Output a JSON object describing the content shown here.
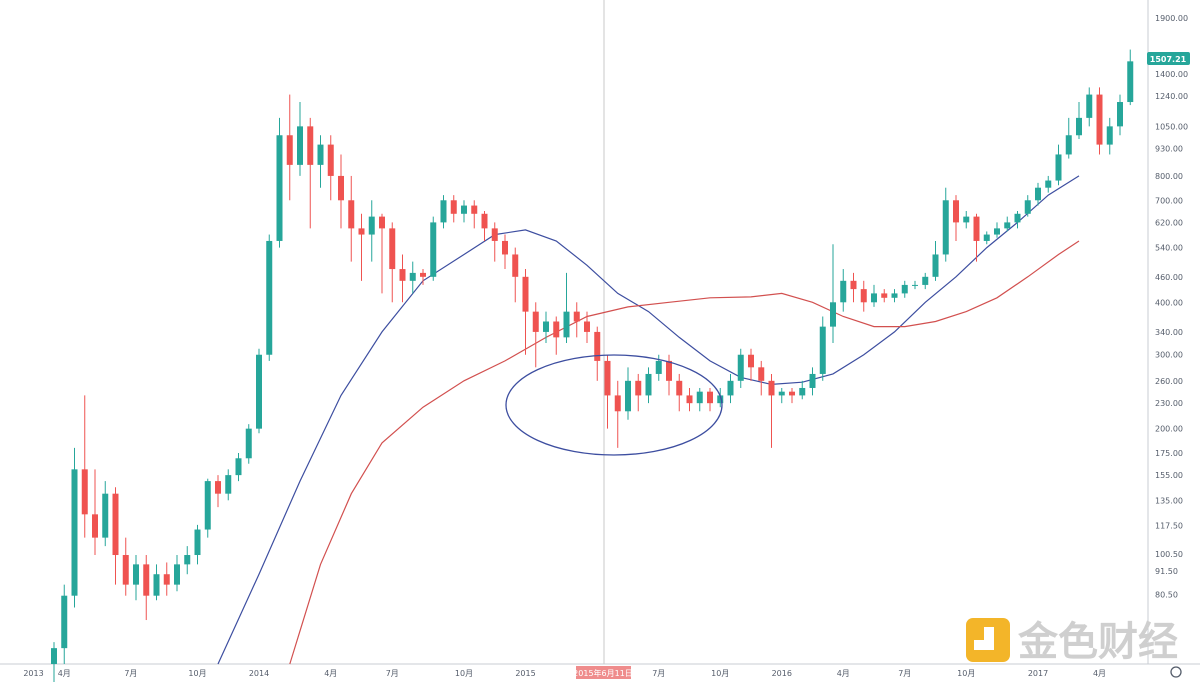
{
  "chart_data": {
    "type": "candlestick",
    "scale": "log",
    "ylim": [
      55,
      2100
    ],
    "price_axis_labels": [
      "1900.00",
      "1400.00",
      "1240.00",
      "1050.00",
      "930.00",
      "800.00",
      "700.00",
      "620.00",
      "540.00",
      "460.00",
      "400.00",
      "340.00",
      "300.00",
      "260.00",
      "230.00",
      "200.00",
      "175.00",
      "155.00",
      "135.00",
      "117.50",
      "100.50",
      "91.50",
      "80.50"
    ],
    "time_axis_labels": [
      "2013",
      "4月",
      "7月",
      "10月",
      "2014",
      "4月",
      "7月",
      "10月",
      "2015",
      "4月",
      "7月",
      "10月",
      "2016",
      "4月",
      "7月",
      "10月",
      "2017",
      "4月"
    ],
    "crosshair_date_label": "2015年6月11日",
    "last_price_label": "1507.21",
    "colors": {
      "up": "#26a69a",
      "down": "#ef5350",
      "ma_blue": "#3d4ea0",
      "ma_red": "#d2504f",
      "ellipse": "#3d4ea0",
      "crosshair": "#c9c9c9",
      "price_tag": "#26a69a",
      "cross_tag": "#ef8c8c"
    },
    "moving_averages": [
      {
        "color": "#3d4ea0",
        "points": [
          [
            18,
            55
          ],
          [
            22,
            90
          ],
          [
            26,
            150
          ],
          [
            30,
            240
          ],
          [
            34,
            340
          ],
          [
            38,
            450
          ],
          [
            42,
            520
          ],
          [
            45,
            580
          ],
          [
            48,
            595
          ],
          [
            51,
            560
          ],
          [
            54,
            490
          ],
          [
            57,
            420
          ],
          [
            60,
            380
          ],
          [
            63,
            330
          ],
          [
            66,
            290
          ],
          [
            69,
            265
          ],
          [
            72,
            255
          ],
          [
            75,
            258
          ],
          [
            78,
            270
          ],
          [
            81,
            300
          ],
          [
            84,
            340
          ],
          [
            87,
            400
          ],
          [
            90,
            460
          ],
          [
            93,
            540
          ],
          [
            96,
            620
          ],
          [
            99,
            720
          ],
          [
            102,
            800
          ]
        ]
      },
      {
        "color": "#d2504f",
        "points": [
          [
            25,
            55
          ],
          [
            28,
            95
          ],
          [
            31,
            140
          ],
          [
            34,
            185
          ],
          [
            38,
            225
          ],
          [
            42,
            260
          ],
          [
            46,
            290
          ],
          [
            50,
            330
          ],
          [
            54,
            370
          ],
          [
            58,
            390
          ],
          [
            62,
            400
          ],
          [
            66,
            410
          ],
          [
            70,
            412
          ],
          [
            73,
            420
          ],
          [
            76,
            400
          ],
          [
            79,
            370
          ],
          [
            82,
            350
          ],
          [
            85,
            350
          ],
          [
            88,
            360
          ],
          [
            91,
            380
          ],
          [
            94,
            410
          ],
          [
            97,
            460
          ],
          [
            100,
            520
          ],
          [
            102,
            560
          ]
        ]
      }
    ],
    "candles": [
      [
        2,
        55,
        60,
        43,
        62
      ],
      [
        3,
        60,
        80,
        55,
        85
      ],
      [
        4,
        80,
        160,
        75,
        180
      ],
      [
        5,
        160,
        125,
        110,
        240
      ],
      [
        6,
        125,
        110,
        100,
        160
      ],
      [
        7,
        110,
        140,
        105,
        150
      ],
      [
        8,
        140,
        100,
        85,
        145
      ],
      [
        9,
        100,
        85,
        80,
        110
      ],
      [
        10,
        85,
        95,
        78,
        100
      ],
      [
        11,
        95,
        80,
        70,
        100
      ],
      [
        12,
        80,
        90,
        78,
        95
      ],
      [
        13,
        90,
        85,
        80,
        96
      ],
      [
        14,
        85,
        95,
        82,
        100
      ],
      [
        15,
        95,
        100,
        90,
        105
      ],
      [
        16,
        100,
        115,
        95,
        118
      ],
      [
        17,
        115,
        150,
        110,
        152
      ],
      [
        18,
        150,
        140,
        130,
        155
      ],
      [
        19,
        140,
        155,
        135,
        160
      ],
      [
        20,
        155,
        170,
        150,
        175
      ],
      [
        21,
        170,
        200,
        165,
        205
      ],
      [
        22,
        200,
        300,
        195,
        310
      ],
      [
        23,
        300,
        560,
        290,
        580
      ],
      [
        24,
        560,
        1000,
        540,
        1100
      ],
      [
        25,
        1000,
        850,
        700,
        1250
      ],
      [
        26,
        850,
        1050,
        800,
        1200
      ],
      [
        27,
        1050,
        850,
        600,
        1100
      ],
      [
        28,
        850,
        950,
        750,
        1000
      ],
      [
        29,
        950,
        800,
        700,
        1000
      ],
      [
        30,
        800,
        700,
        600,
        900
      ],
      [
        31,
        700,
        600,
        500,
        800
      ],
      [
        32,
        600,
        580,
        450,
        650
      ],
      [
        33,
        580,
        640,
        500,
        700
      ],
      [
        34,
        640,
        600,
        420,
        650
      ],
      [
        35,
        600,
        480,
        400,
        620
      ],
      [
        36,
        480,
        450,
        400,
        520
      ],
      [
        37,
        450,
        470,
        420,
        500
      ],
      [
        38,
        470,
        460,
        440,
        480
      ],
      [
        39,
        460,
        620,
        450,
        640
      ],
      [
        40,
        620,
        700,
        600,
        720
      ],
      [
        41,
        700,
        650,
        620,
        720
      ],
      [
        42,
        650,
        680,
        620,
        700
      ],
      [
        43,
        680,
        650,
        600,
        700
      ],
      [
        44,
        650,
        600,
        560,
        660
      ],
      [
        45,
        600,
        560,
        500,
        620
      ],
      [
        46,
        560,
        520,
        480,
        580
      ],
      [
        47,
        520,
        460,
        400,
        540
      ],
      [
        48,
        460,
        380,
        300,
        480
      ],
      [
        49,
        380,
        340,
        280,
        400
      ],
      [
        50,
        340,
        360,
        320,
        380
      ],
      [
        51,
        360,
        330,
        300,
        370
      ],
      [
        52,
        330,
        380,
        320,
        470
      ],
      [
        53,
        380,
        360,
        330,
        400
      ],
      [
        54,
        360,
        340,
        320,
        380
      ],
      [
        55,
        340,
        290,
        260,
        350
      ],
      [
        56,
        290,
        240,
        200,
        300
      ],
      [
        57,
        240,
        220,
        180,
        260
      ],
      [
        58,
        220,
        260,
        210,
        280
      ],
      [
        59,
        260,
        240,
        220,
        270
      ],
      [
        60,
        240,
        270,
        230,
        280
      ],
      [
        61,
        270,
        290,
        260,
        300
      ],
      [
        62,
        290,
        260,
        240,
        300
      ],
      [
        63,
        260,
        240,
        220,
        270
      ],
      [
        64,
        240,
        230,
        220,
        250
      ],
      [
        65,
        230,
        245,
        220,
        250
      ],
      [
        66,
        245,
        230,
        220,
        250
      ],
      [
        67,
        230,
        240,
        225,
        250
      ],
      [
        68,
        240,
        260,
        230,
        270
      ],
      [
        69,
        260,
        300,
        250,
        310
      ],
      [
        70,
        300,
        280,
        260,
        310
      ],
      [
        71,
        280,
        260,
        240,
        290
      ],
      [
        72,
        260,
        240,
        180,
        270
      ],
      [
        73,
        240,
        245,
        230,
        250
      ],
      [
        74,
        245,
        240,
        230,
        250
      ],
      [
        75,
        240,
        250,
        235,
        260
      ],
      [
        76,
        250,
        270,
        240,
        280
      ],
      [
        77,
        270,
        350,
        260,
        370
      ],
      [
        78,
        350,
        400,
        320,
        550
      ],
      [
        79,
        400,
        450,
        380,
        480
      ],
      [
        80,
        450,
        430,
        400,
        470
      ],
      [
        81,
        430,
        400,
        380,
        450
      ],
      [
        82,
        400,
        420,
        390,
        440
      ],
      [
        83,
        420,
        410,
        400,
        430
      ],
      [
        84,
        410,
        420,
        400,
        430
      ],
      [
        85,
        420,
        440,
        410,
        450
      ],
      [
        86,
        440,
        440,
        430,
        450
      ],
      [
        87,
        440,
        460,
        430,
        470
      ],
      [
        88,
        460,
        520,
        450,
        560
      ],
      [
        89,
        520,
        700,
        500,
        750
      ],
      [
        90,
        700,
        620,
        560,
        720
      ],
      [
        91,
        620,
        640,
        600,
        660
      ],
      [
        92,
        640,
        560,
        500,
        650
      ],
      [
        93,
        560,
        580,
        550,
        590
      ],
      [
        94,
        580,
        600,
        570,
        620
      ],
      [
        95,
        600,
        620,
        590,
        640
      ],
      [
        96,
        620,
        650,
        600,
        660
      ],
      [
        97,
        650,
        700,
        640,
        720
      ],
      [
        98,
        700,
        750,
        680,
        770
      ],
      [
        99,
        750,
        780,
        730,
        800
      ],
      [
        100,
        780,
        900,
        760,
        950
      ],
      [
        101,
        900,
        1000,
        880,
        1100
      ],
      [
        102,
        1000,
        1100,
        980,
        1200
      ],
      [
        103,
        1100,
        1250,
        1050,
        1300
      ],
      [
        104,
        1250,
        950,
        900,
        1300
      ],
      [
        105,
        950,
        1050,
        900,
        1100
      ],
      [
        106,
        1050,
        1200,
        1000,
        1250
      ],
      [
        107,
        1200,
        1500,
        1180,
        1600
      ]
    ]
  },
  "watermark": {
    "brand_text": "金色财经"
  }
}
